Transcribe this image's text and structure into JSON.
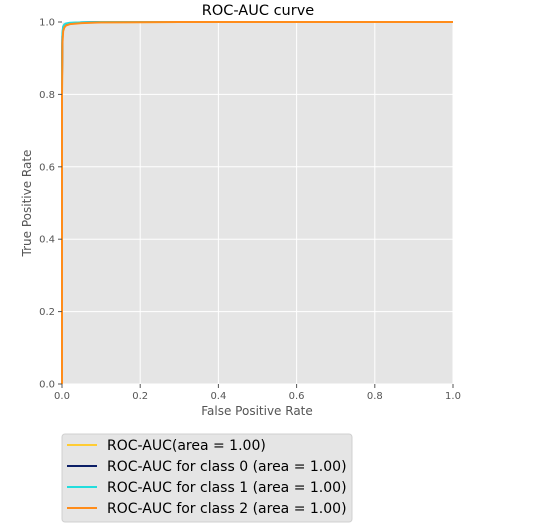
{
  "chart_data": {
    "type": "line",
    "title": "ROC-AUC curve",
    "xlabel": "False Positive Rate",
    "ylabel": "True Positive Rate",
    "xlim": [
      0.0,
      1.0
    ],
    "ylim": [
      0.0,
      1.0
    ],
    "xticks": [
      "0.0",
      "0.2",
      "0.4",
      "0.6",
      "0.8",
      "1.0"
    ],
    "yticks": [
      "0.0",
      "0.2",
      "0.4",
      "0.6",
      "0.8",
      "1.0"
    ],
    "grid": true,
    "legend_position": "below-left",
    "series": [
      {
        "name": "ROC-AUC(area = 1.00)",
        "color": "#ffcc33",
        "x": [
          0.0,
          0.0,
          0.001,
          0.003,
          0.006,
          0.01,
          0.02,
          0.05,
          0.1,
          0.3,
          1.0
        ],
        "y": [
          0.0,
          0.8,
          0.95,
          0.98,
          0.99,
          0.993,
          0.996,
          0.998,
          0.999,
          1.0,
          1.0
        ]
      },
      {
        "name": "ROC-AUC for class 0 (area = 1.00)",
        "color": "#0b1e66",
        "x": [
          0.0,
          0.0,
          0.001,
          0.003,
          0.006,
          0.01,
          0.02,
          0.05,
          0.1,
          0.3,
          1.0
        ],
        "y": [
          0.0,
          0.85,
          0.96,
          0.985,
          0.992,
          0.995,
          0.997,
          0.999,
          1.0,
          1.0,
          1.0
        ]
      },
      {
        "name": "ROC-AUC for class 1 (area = 1.00)",
        "color": "#22dddd",
        "x": [
          0.0,
          0.0,
          0.001,
          0.003,
          0.006,
          0.01,
          0.02,
          0.05,
          0.1,
          0.3,
          1.0
        ],
        "y": [
          0.0,
          0.86,
          0.97,
          0.988,
          0.993,
          0.996,
          0.998,
          0.999,
          1.0,
          1.0,
          1.0
        ]
      },
      {
        "name": "ROC-AUC for class 2 (area = 1.00)",
        "color": "#ff8c1a",
        "x": [
          0.0,
          0.0,
          0.001,
          0.003,
          0.006,
          0.01,
          0.02,
          0.05,
          0.1,
          0.3,
          1.0
        ],
        "y": [
          0.0,
          0.8,
          0.94,
          0.975,
          0.985,
          0.99,
          0.994,
          0.997,
          0.999,
          1.0,
          1.0
        ]
      }
    ]
  }
}
